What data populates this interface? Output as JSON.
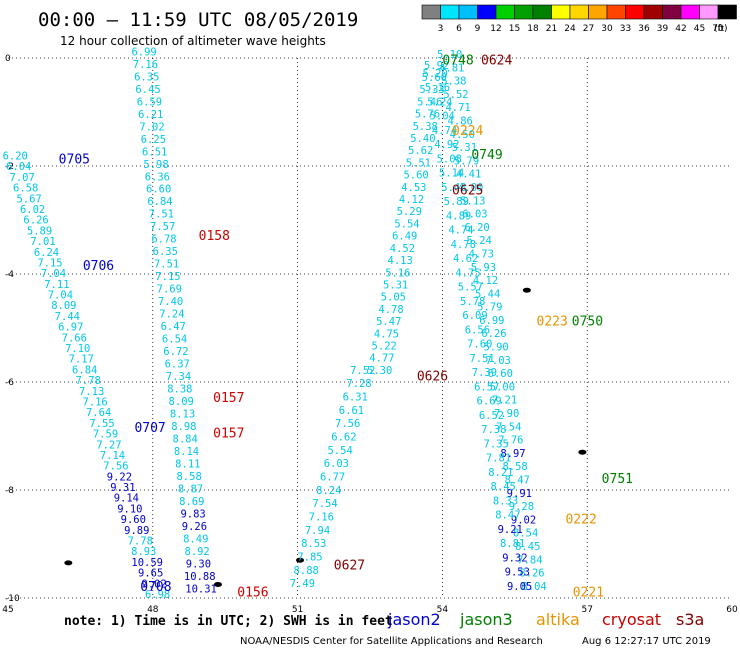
{
  "header": {
    "title": "00:00 – 11:59 UTC 08/05/2019",
    "subtitle": "12 hour collection of altimeter wave heights"
  },
  "colorbar": {
    "labels": [
      "3",
      "6",
      "9",
      "12",
      "15",
      "18",
      "21",
      "24",
      "27",
      "30",
      "33",
      "36",
      "39",
      "42",
      "45",
      "70"
    ],
    "unit": "(ft)",
    "colors": [
      "#808080",
      "#00e5ff",
      "#00bfff",
      "#0000ff",
      "#00d000",
      "#00a000",
      "#008000",
      "#ffff00",
      "#ffd700",
      "#ffa500",
      "#ff4500",
      "#ff0000",
      "#a00000",
      "#800040",
      "#ff00ff",
      "#ff99ff",
      "#000000"
    ]
  },
  "footer": {
    "note": "note:  1) Time is in UTC;  2) SWH is in feet",
    "credit": "NOAA/NESDIS Center for Satellite Applications and Research",
    "timestamp": "Aug  6 12:27:17 UTC 2019"
  },
  "legend": [
    {
      "name": "jason2",
      "color": "#0000cc"
    },
    {
      "name": "jason3",
      "color": "#008000"
    },
    {
      "name": "altika",
      "color": "#e69500"
    },
    {
      "name": "cryosat",
      "color": "#cc0000"
    },
    {
      "name": "s3a",
      "color": "#800000"
    }
  ],
  "chart_data": {
    "type": "scatter",
    "title": "00:00 – 11:59 UTC 08/05/2019",
    "subtitle": "12 hour collection of altimeter wave heights",
    "xlabel": "",
    "ylabel": "",
    "xlim": [
      45,
      60
    ],
    "ylim": [
      -10,
      0
    ],
    "x_ticks": [
      45,
      48,
      51,
      54,
      57,
      60
    ],
    "y_ticks": [
      0,
      -2,
      -4,
      -6,
      -8,
      -10
    ],
    "grid": true,
    "units": "ft",
    "time_labels": [
      {
        "text": "0705",
        "x": 46.05,
        "y": -1.88,
        "sat": "jason2"
      },
      {
        "text": "0706",
        "x": 46.55,
        "y": -3.85,
        "sat": "jason2"
      },
      {
        "text": "0707",
        "x": 47.62,
        "y": -6.85,
        "sat": "jason2"
      },
      {
        "text": "0708",
        "x": 47.74,
        "y": -9.8,
        "sat": "jason2"
      },
      {
        "text": "0158",
        "x": 48.95,
        "y": -3.3,
        "sat": "cryosat"
      },
      {
        "text": "0157",
        "x": 49.25,
        "y": -6.3,
        "sat": "cryosat"
      },
      {
        "text": "0157",
        "x": 49.25,
        "y": -6.95,
        "sat": "cryosat"
      },
      {
        "text": "0156",
        "x": 49.75,
        "y": -9.9,
        "sat": "cryosat"
      },
      {
        "text": "0748",
        "x": 54.0,
        "y": -0.05,
        "sat": "jason3"
      },
      {
        "text": "0749",
        "x": 54.6,
        "y": -1.8,
        "sat": "jason3"
      },
      {
        "text": "0750",
        "x": 56.68,
        "y": -4.88,
        "sat": "jason3"
      },
      {
        "text": "0751",
        "x": 57.3,
        "y": -7.8,
        "sat": "jason3"
      },
      {
        "text": "0224",
        "x": 54.2,
        "y": -1.35,
        "sat": "altika"
      },
      {
        "text": "0223",
        "x": 55.95,
        "y": -4.88,
        "sat": "altika"
      },
      {
        "text": "0222",
        "x": 56.55,
        "y": -8.55,
        "sat": "altika"
      },
      {
        "text": "0221",
        "x": 56.7,
        "y": -9.9,
        "sat": "altika"
      },
      {
        "text": "0624",
        "x": 54.8,
        "y": -0.05,
        "sat": "s3a"
      },
      {
        "text": "0625",
        "x": 54.2,
        "y": -2.45,
        "sat": "s3a"
      },
      {
        "text": "0626",
        "x": 53.47,
        "y": -5.9,
        "sat": "s3a"
      },
      {
        "text": "0627",
        "x": 51.75,
        "y": -9.4,
        "sat": "s3a"
      }
    ],
    "series": [
      {
        "name": "jason2",
        "tracks": [
          {
            "x0": 45.15,
            "y0": -1.88,
            "x1": 48.1,
            "y1": -10.0,
            "values": [
              "6.20",
              "6.04",
              "7.07",
              "6.58",
              "5.67",
              "6.02",
              "6.26",
              "5.89",
              "7.01",
              "6.24",
              "7.15",
              "7.04",
              "7.11",
              "7.04",
              "8.09",
              "7.44",
              "6.97",
              "7.66",
              "7.10",
              "7.17",
              "6.84",
              "7.78",
              "7.13",
              "7.16",
              "7.64",
              "7.55",
              "7.59",
              "7.27",
              "7.14",
              "7.56",
              "9.22",
              "9.31",
              "9.14",
              "9.10",
              "9.60",
              "9.89",
              "7.78",
              "8.93",
              "10.59",
              "9.65",
              "9.02",
              "6.98"
            ],
            "colors": [
              "c",
              "c",
              "c",
              "c",
              "c",
              "c",
              "c",
              "c",
              "c",
              "c",
              "c",
              "c",
              "c",
              "c",
              "c",
              "c",
              "c",
              "c",
              "c",
              "c",
              "c",
              "c",
              "c",
              "c",
              "c",
              "c",
              "c",
              "c",
              "c",
              "c",
              "b",
              "b",
              "b",
              "b",
              "b",
              "b",
              "c",
              "c",
              "b",
              "b",
              "b",
              "c"
            ]
          }
        ]
      },
      {
        "name": "cryosat",
        "tracks": [
          {
            "x0": 47.82,
            "y0": 0.05,
            "x1": 49.0,
            "y1": -9.9,
            "values": [
              "6.99",
              "7.16",
              "6.35",
              "6.45",
              "6.59",
              "6.21",
              "7.02",
              "6.25",
              "6.51",
              "5.98",
              "6.36",
              "6.60",
              "6.84",
              "7.51",
              "7.57",
              "6.78",
              "6.35",
              "7.51",
              "7.15",
              "7.69",
              "7.40",
              "7.24",
              "6.47",
              "6.54",
              "6.72",
              "6.37",
              "7.34",
              "8.38",
              "8.09",
              "8.13",
              "8.98",
              "8.84",
              "8.14",
              "8.11",
              "8.58",
              "8.87",
              "8.69",
              "9.83",
              "9.26",
              "8.49",
              "8.92",
              "9.30",
              "10.88",
              "10.31"
            ],
            "colors": [
              "c",
              "c",
              "c",
              "c",
              "c",
              "c",
              "c",
              "c",
              "c",
              "c",
              "c",
              "c",
              "c",
              "c",
              "c",
              "c",
              "c",
              "c",
              "c",
              "c",
              "c",
              "c",
              "c",
              "c",
              "c",
              "c",
              "c",
              "c",
              "c",
              "c",
              "c",
              "c",
              "c",
              "c",
              "c",
              "c",
              "c",
              "b",
              "b",
              "c",
              "c",
              "b",
              "b",
              "b"
            ]
          }
        ]
      },
      {
        "name": "s3a",
        "tracks": [
          {
            "x0": 52.35,
            "y0": -5.85,
            "x1": 51.1,
            "y1": -9.8,
            "values": [
              "7.52",
              "7.28",
              "6.31",
              "6.61",
              "7.56",
              "6.62",
              "5.54",
              "6.03",
              "6.77",
              "8.24",
              "7.54",
              "7.16",
              "7.94",
              "8.53",
              "7.85",
              "8.88",
              "7.49"
            ],
            "colors": [
              "c",
              "c",
              "c",
              "c",
              "c",
              "c",
              "c",
              "c",
              "c",
              "c",
              "c",
              "c",
              "c",
              "c",
              "c",
              "c",
              "c"
            ]
          },
          {
            "x0": 53.88,
            "y0": -0.2,
            "x1": 52.7,
            "y1": -5.85,
            "values": [
              "5.92",
              "5.60",
              "5.33",
              "5.46",
              "5.76",
              "5.38",
              "5.40",
              "5.62",
              "5.51",
              "5.60",
              "4.53",
              "4.12",
              "5.29",
              "5.54",
              "6.49",
              "4.52",
              "4.13",
              "5.16",
              "5.31",
              "5.05",
              "4.78",
              "5.47",
              "4.75",
              "5.22",
              "4.77",
              "5.30"
            ],
            "colors": [
              "c",
              "c",
              "c",
              "c",
              "c",
              "c",
              "c",
              "c",
              "c",
              "c",
              "c",
              "c",
              "c",
              "c",
              "c",
              "c",
              "c",
              "c",
              "c",
              "c",
              "c",
              "c",
              "c",
              "c",
              "c",
              "c"
            ]
          }
        ]
      },
      {
        "name": "jason3",
        "tracks": [
          {
            "x0": 54.15,
            "y0": 0.0,
            "x1": 55.9,
            "y1": -9.85,
            "values": [
              "5.10",
              "4.81",
              "5.38",
              "5.52",
              "4.71",
              "4.86",
              "4.50",
              "5.31",
              "5.79",
              "4.41",
              "4.00",
              "5.13",
              "6.03",
              "6.20",
              "5.24",
              "4.73",
              "5.93",
              "4.12",
              "5.44",
              "5.79",
              "6.99",
              "6.26",
              "5.90",
              "7.03",
              "6.60",
              "5.00",
              "7.21",
              "7.90",
              "7.54",
              "7.76",
              "8.97",
              "8.58",
              "8.47",
              "9.91",
              "9.28",
              "9.02",
              "8.54",
              "8.45",
              "7.84",
              "8.26",
              "8.04"
            ],
            "colors": [
              "c",
              "c",
              "c",
              "c",
              "c",
              "c",
              "c",
              "c",
              "c",
              "c",
              "c",
              "c",
              "c",
              "c",
              "c",
              "c",
              "c",
              "c",
              "c",
              "c",
              "c",
              "c",
              "c",
              "c",
              "c",
              "c",
              "c",
              "c",
              "c",
              "c",
              "b",
              "c",
              "c",
              "b",
              "c",
              "b",
              "c",
              "c",
              "c",
              "c",
              "c"
            ]
          }
        ]
      },
      {
        "name": "altika",
        "tracks": [
          {
            "x0": 53.85,
            "y0": -0.35,
            "x1": 55.6,
            "y1": -9.85,
            "values": [
              "5.20",
              "5.16",
              "5.24",
              "5.04",
              "4.74",
              "4.92",
              "5.08",
              "5.14",
              "5.43",
              "5.89",
              "4.89",
              "4.74",
              "4.78",
              "4.62",
              "4.75",
              "5.57",
              "5.78",
              "6.09",
              "6.56",
              "7.60",
              "7.51",
              "7.39",
              "6.57",
              "6.69",
              "6.52",
              "7.38",
              "7.35",
              "7.81",
              "8.21",
              "8.45",
              "8.33",
              "8.47",
              "9.21",
              "8.81",
              "9.32",
              "9.53",
              "9.05"
            ],
            "colors": [
              "c",
              "c",
              "c",
              "c",
              "c",
              "c",
              "c",
              "c",
              "c",
              "c",
              "c",
              "c",
              "c",
              "c",
              "c",
              "c",
              "c",
              "c",
              "c",
              "c",
              "c",
              "c",
              "c",
              "c",
              "c",
              "c",
              "c",
              "c",
              "c",
              "c",
              "c",
              "c",
              "b",
              "c",
              "b",
              "b",
              "b"
            ]
          }
        ]
      }
    ],
    "land": [
      {
        "x": 55.75,
        "y": -4.3
      },
      {
        "x": 56.9,
        "y": -7.3
      },
      {
        "x": 46.25,
        "y": -9.35
      },
      {
        "x": 51.05,
        "y": -9.3
      },
      {
        "x": 49.35,
        "y": -9.75
      }
    ]
  }
}
